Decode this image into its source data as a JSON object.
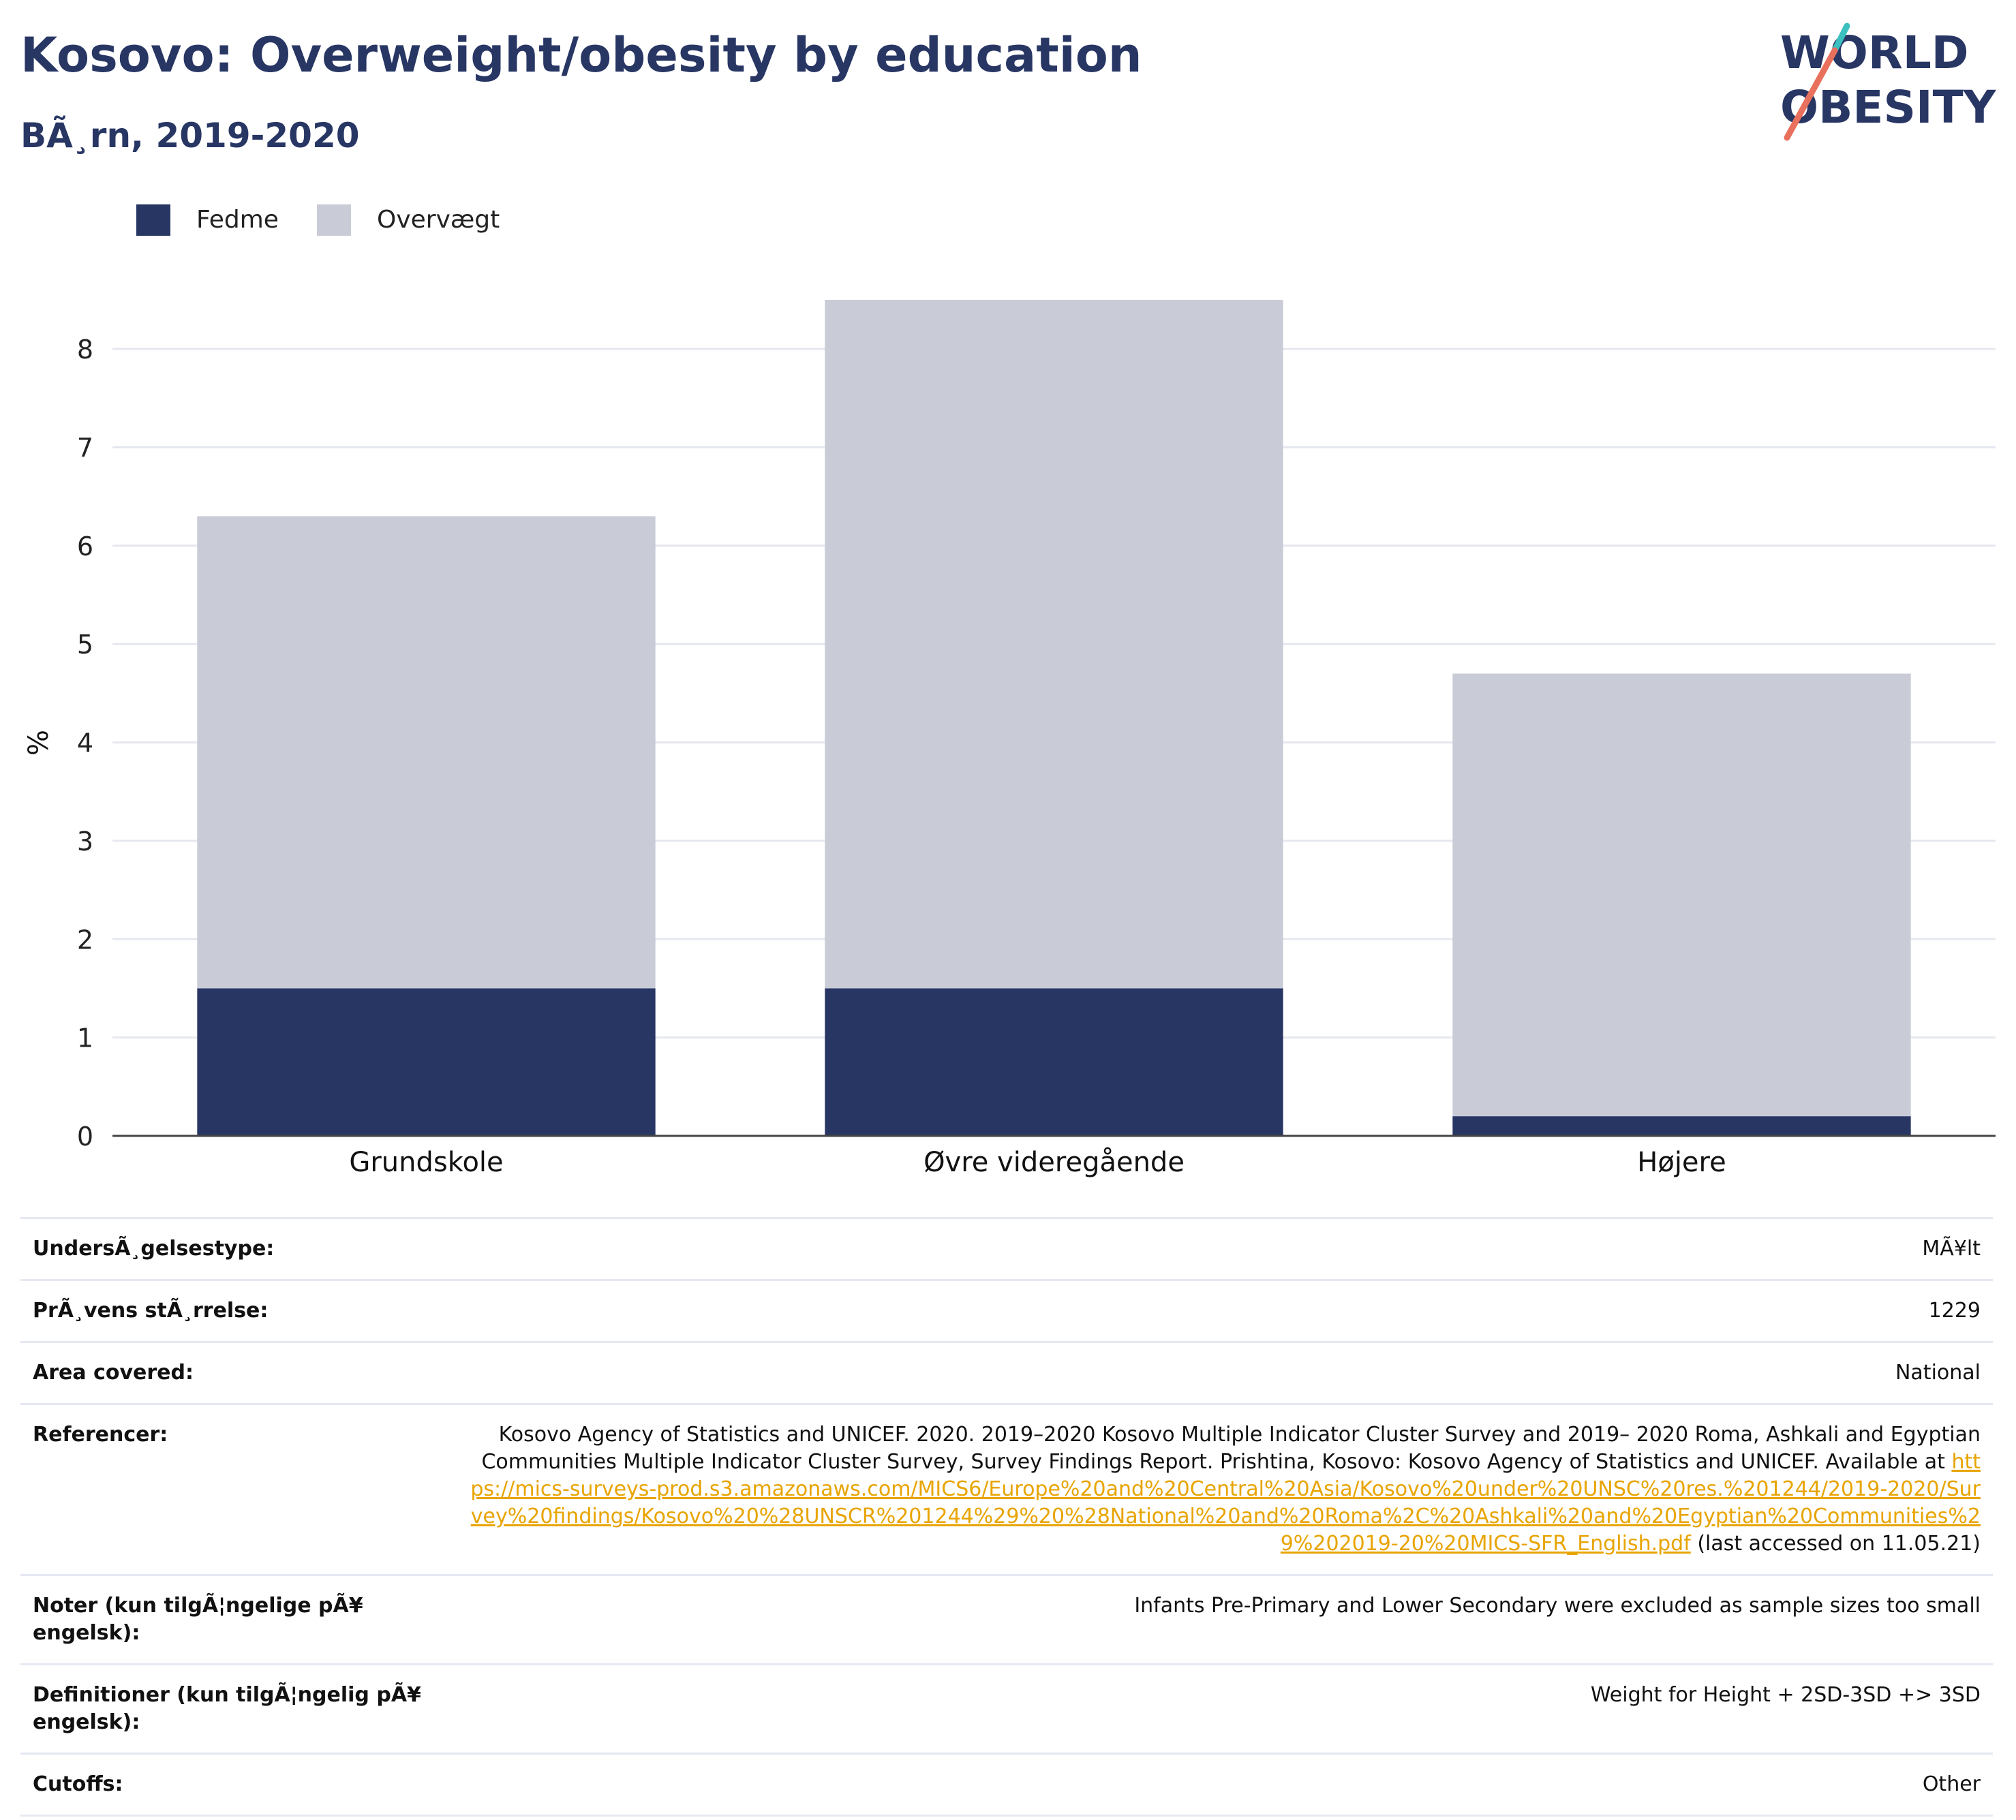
{
  "header": {
    "title": "Kosovo: Overweight/obesity by education",
    "subtitle": "BÃ¸rn, 2019-2020"
  },
  "logo": {
    "line1": "WORLD",
    "line2": "OBESITY"
  },
  "colors": {
    "obesity": "#283664",
    "overweight": "#c9ccd7",
    "gridline": "#e6e8f0",
    "axis": "#444444",
    "link": "#e8a400",
    "logo_text": "#283664",
    "logo_teal": "#3bbfbf",
    "logo_coral": "#e8705c"
  },
  "chart_data": {
    "type": "bar",
    "stacked": true,
    "categories": [
      "Grundskole",
      "Øvre videregående",
      "Højere"
    ],
    "series": [
      {
        "name": "Fedme",
        "values": [
          1.5,
          1.5,
          0.2
        ],
        "color": "#283664"
      },
      {
        "name": "Overvægt",
        "values": [
          4.8,
          7.0,
          4.5
        ],
        "color": "#c9ccd7"
      }
    ],
    "ylabel": "%",
    "xlabel": "",
    "ylim": [
      0,
      8.5
    ],
    "yticks": [
      0,
      1,
      2,
      3,
      4,
      5,
      6,
      7,
      8
    ],
    "grid": true,
    "legend_position": "top-left"
  },
  "info": {
    "rows": [
      {
        "label": "UndersÃ¸gelsestype:",
        "value": "MÃ¥lt"
      },
      {
        "label": "PrÃ¸vens stÃ¸rrelse:",
        "value": "1229"
      },
      {
        "label": "Area covered:",
        "value": "National"
      },
      {
        "label": "Referencer:",
        "value": "Kosovo Agency of Statistics and UNICEF. 2020. 2019–2020 Kosovo Multiple Indicator Cluster Survey and 2019– 2020 Roma, Ashkali and Egyptian Communities Multiple Indicator Cluster Survey, Survey Findings Report. Prishtina, Kosovo: Kosovo Agency of Statistics and UNICEF. Available at ",
        "link": "https://mics-surveys-prod.s3.amazonaws.com/MICS6/Europe%20and%20Central%20Asia/Kosovo%20under%20UNSC%20res.%201244/2019-2020/Survey%20findings/Kosovo%20%28UNSCR%201244%29%20%28National%20and%20Roma%2C%20Ashkali%20and%20Egyptian%20Communities%29%202019-20%20MICS-SFR_English.pdf",
        "suffix": " (last accessed on 11.05.21)"
      },
      {
        "label": "Noter (kun tilgÃ¦ngelige pÃ¥ engelsk):",
        "value": "Infants Pre-Primary and Lower Secondary were excluded as sample sizes too small"
      },
      {
        "label": "Definitioner (kun tilgÃ¦ngelig pÃ¥ engelsk):",
        "value": "Weight for Height + 2SD-3SD +> 3SD"
      },
      {
        "label": "Cutoffs:",
        "value": "Other"
      }
    ]
  }
}
